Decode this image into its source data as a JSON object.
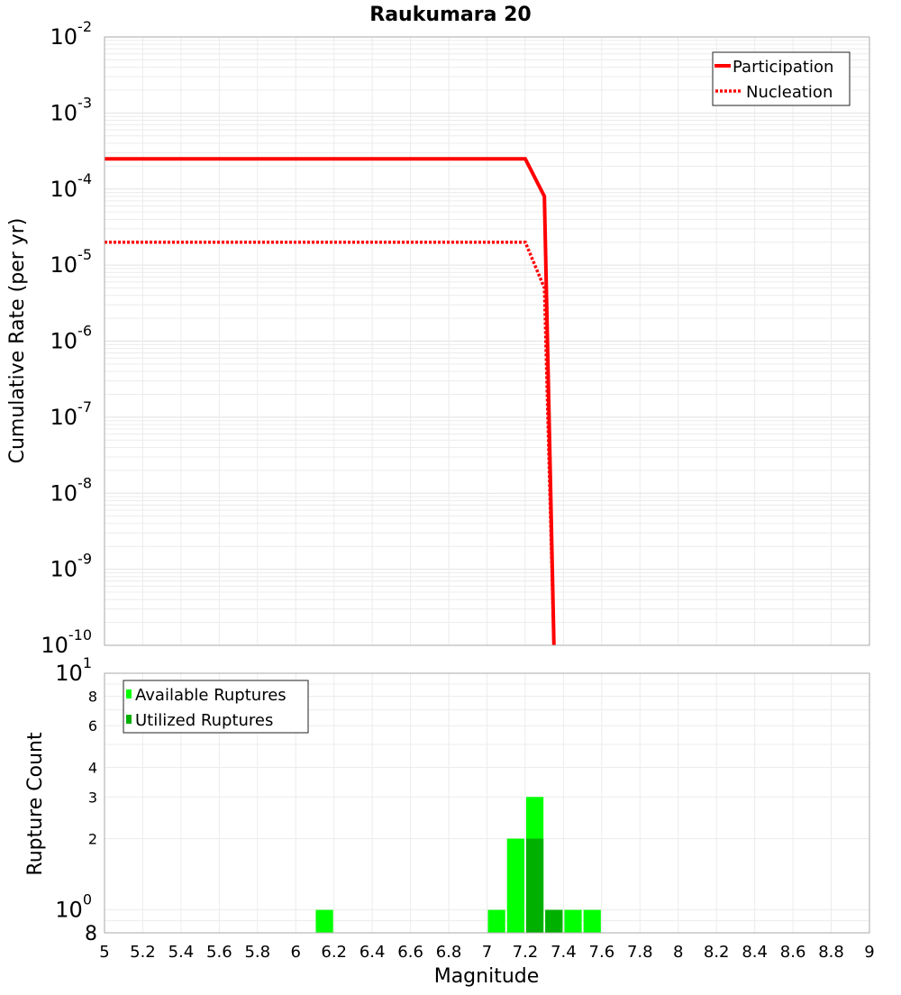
{
  "chart_data": [
    {
      "type": "line",
      "title": "Raukumara 20",
      "xlabel": "Magnitude",
      "ylabel": "Cumulative Rate (per yr)",
      "yscale": "log",
      "xlim": [
        5,
        9
      ],
      "ylim": [
        1e-10,
        0.01
      ],
      "y_ticks": [
        {
          "base": "10",
          "exp": "-2",
          "value": 0.01
        },
        {
          "base": "10",
          "exp": "-3",
          "value": 0.001
        },
        {
          "base": "10",
          "exp": "-4",
          "value": 0.0001
        },
        {
          "base": "10",
          "exp": "-5",
          "value": 1e-05
        },
        {
          "base": "10",
          "exp": "-6",
          "value": 1e-06
        },
        {
          "base": "10",
          "exp": "-7",
          "value": 1e-07
        },
        {
          "base": "10",
          "exp": "-8",
          "value": 1e-08
        },
        {
          "base": "10",
          "exp": "-9",
          "value": 1e-09
        },
        {
          "base": "10",
          "exp": "-10",
          "value": 1e-10
        }
      ],
      "grid": true,
      "legend_position": "top-right",
      "series": [
        {
          "name": "Participation",
          "style": "solid",
          "color": "#ff0000",
          "x": [
            5.0,
            7.2,
            7.3,
            7.35
          ],
          "y": [
            0.00025,
            0.00025,
            8e-05,
            1e-10
          ]
        },
        {
          "name": "Nucleation",
          "style": "dotted",
          "color": "#ff0000",
          "x": [
            5.0,
            7.2,
            7.3,
            7.35
          ],
          "y": [
            2e-05,
            2e-05,
            5e-06,
            1e-10
          ]
        }
      ]
    },
    {
      "type": "bar",
      "xlabel": "Magnitude",
      "ylabel": "Rupture Count",
      "yscale": "log",
      "xlim": [
        5,
        9
      ],
      "ylim": [
        0.8,
        10
      ],
      "x_ticks": [
        "5",
        "5.2",
        "5.4",
        "5.6",
        "5.8",
        "6",
        "6.2",
        "6.4",
        "6.6",
        "6.8",
        "7",
        "7.2",
        "7.4",
        "7.6",
        "7.8",
        "8",
        "8.2",
        "8.4",
        "8.6",
        "8.8",
        "9"
      ],
      "y_ticks": [
        {
          "label": "10",
          "exp": "1",
          "value": 10,
          "major": true
        },
        {
          "label": "8",
          "value": 8
        },
        {
          "label": "6",
          "value": 6
        },
        {
          "label": "4",
          "value": 4
        },
        {
          "label": "3",
          "value": 3
        },
        {
          "label": "2",
          "value": 2
        },
        {
          "label": "10",
          "exp": "0",
          "value": 1,
          "major": true
        },
        {
          "label": "8",
          "value": 0.8,
          "major": true
        }
      ],
      "grid": true,
      "legend_position": "top-left",
      "bin_width": 0.1,
      "categories": [
        6.15,
        7.05,
        7.15,
        7.25,
        7.35,
        7.45,
        7.55
      ],
      "series": [
        {
          "name": "Available Ruptures",
          "color": "#00ff00",
          "values": [
            1,
            1,
            2,
            3,
            1,
            1,
            1
          ]
        },
        {
          "name": "Utilized Ruptures",
          "color": "#00b000",
          "values": [
            0,
            0,
            0,
            2,
            1,
            0,
            0
          ]
        }
      ]
    }
  ],
  "labels": {
    "title": "Raukumara 20",
    "top_ylabel": "Cumulative Rate (per yr)",
    "bottom_ylabel": "Rupture Count",
    "xlabel": "Magnitude",
    "legend_top": [
      "Participation",
      "Nucleation"
    ],
    "legend_bottom": [
      "Available Ruptures",
      "Utilized Ruptures"
    ]
  }
}
